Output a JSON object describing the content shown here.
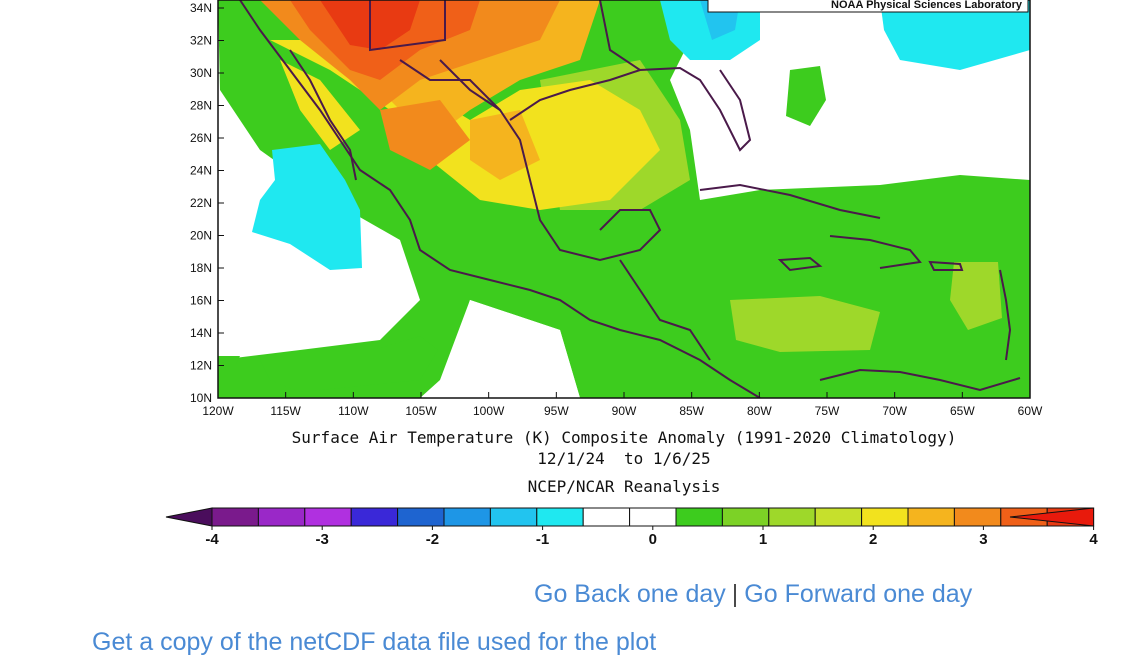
{
  "map": {
    "credit": "NOAA Physical Sciences Laboratory",
    "lat_labels": [
      "34N",
      "32N",
      "30N",
      "28N",
      "26N",
      "24N",
      "22N",
      "20N",
      "18N",
      "16N",
      "14N",
      "12N",
      "10N"
    ],
    "lon_labels": [
      "120W",
      "115W",
      "110W",
      "105W",
      "100W",
      "95W",
      "90W",
      "85W",
      "80W",
      "75W",
      "70W",
      "65W",
      "60W"
    ],
    "caption_line1": "Surface Air Temperature (K) Composite Anomaly (1991-2020 Climatology)",
    "caption_line2": "12/1/24  to 1/6/25",
    "source": "NCEP/NCAR Reanalysis",
    "colors": {
      "white": "#ffffff",
      "green": "#3dcc1e",
      "lightgreen": "#9ed82a",
      "yellowgreen": "#c6e02c",
      "yellow": "#f2e21e",
      "lightorange": "#f5b41e",
      "orange": "#f28a1c",
      "redorange": "#f06018",
      "red": "#e83a12",
      "cyan": "#1fe8f0",
      "lightblue": "#22c4ef"
    }
  },
  "colorbar": {
    "labels": [
      "-4",
      "-3",
      "-2",
      "-1",
      "0",
      "1",
      "2",
      "3",
      "4"
    ],
    "colors": [
      "#4a0d5c",
      "#7a1a8c",
      "#9a28c8",
      "#b030e0",
      "#3a28d8",
      "#1e64d0",
      "#1e96e6",
      "#22c4ef",
      "#1fe8f0",
      "#ffffff",
      "#ffffff",
      "#3dcc1e",
      "#7cd226",
      "#9ed82a",
      "#c6e02c",
      "#f2e21e",
      "#f5b41e",
      "#f28a1c",
      "#f06018",
      "#e83a12",
      "#e81a0c"
    ]
  },
  "nav": {
    "back": "Go Back one day",
    "separator": "|",
    "forward": "Go Forward one day"
  },
  "bottom_link": "Get a copy of the netCDF data file used for the plot"
}
